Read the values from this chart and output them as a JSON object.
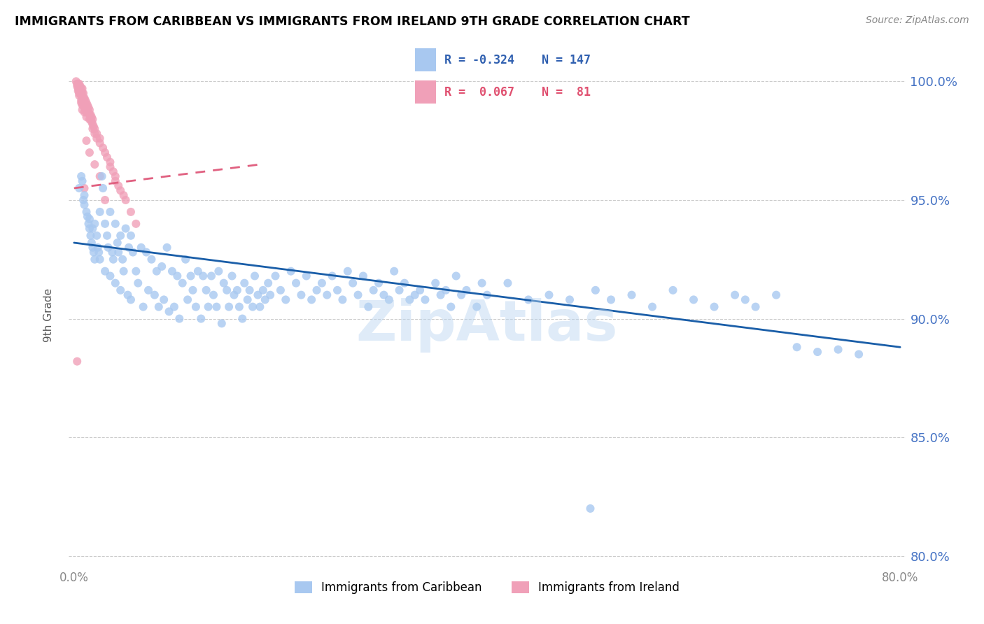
{
  "title": "IMMIGRANTS FROM CARIBBEAN VS IMMIGRANTS FROM IRELAND 9TH GRADE CORRELATION CHART",
  "source_text": "Source: ZipAtlas.com",
  "ylabel": "9th Grade",
  "xlim": [
    -0.005,
    0.805
  ],
  "ylim": [
    0.795,
    1.008
  ],
  "yticks": [
    0.8,
    0.85,
    0.9,
    0.95,
    1.0
  ],
  "ytick_labels": [
    "80.0%",
    "85.0%",
    "90.0%",
    "95.0%",
    "100.0%"
  ],
  "xticks": [
    0.0,
    0.2,
    0.4,
    0.6,
    0.8
  ],
  "xtick_labels": [
    "0.0%",
    "",
    "",
    "",
    "80.0%"
  ],
  "blue_color": "#A8C8F0",
  "pink_color": "#F0A0B8",
  "blue_line_color": "#1A5EA8",
  "pink_line_color": "#E06080",
  "grid_color": "#CCCCCC",
  "watermark_text": "ZipAtlas",
  "watermark_color": "#B8D4F0",
  "legend_R_blue": "-0.324",
  "legend_N_blue": "147",
  "legend_R_pink": " 0.067",
  "legend_N_pink": " 81",
  "blue_trend_x0": 0.0,
  "blue_trend_y0": 0.932,
  "blue_trend_x1": 0.8,
  "blue_trend_y1": 0.888,
  "pink_trend_x0": 0.0,
  "pink_trend_y0": 0.955,
  "pink_trend_x1": 0.18,
  "pink_trend_y1": 0.965,
  "blue_scatter_x": [
    0.005,
    0.007,
    0.008,
    0.009,
    0.01,
    0.01,
    0.012,
    0.013,
    0.014,
    0.015,
    0.015,
    0.016,
    0.017,
    0.018,
    0.018,
    0.019,
    0.02,
    0.02,
    0.022,
    0.023,
    0.024,
    0.025,
    0.025,
    0.027,
    0.028,
    0.03,
    0.03,
    0.032,
    0.033,
    0.035,
    0.035,
    0.037,
    0.038,
    0.04,
    0.04,
    0.042,
    0.043,
    0.045,
    0.045,
    0.047,
    0.048,
    0.05,
    0.052,
    0.053,
    0.055,
    0.055,
    0.057,
    0.06,
    0.062,
    0.065,
    0.067,
    0.07,
    0.072,
    0.075,
    0.078,
    0.08,
    0.082,
    0.085,
    0.087,
    0.09,
    0.092,
    0.095,
    0.097,
    0.1,
    0.102,
    0.105,
    0.108,
    0.11,
    0.113,
    0.115,
    0.118,
    0.12,
    0.123,
    0.125,
    0.128,
    0.13,
    0.133,
    0.135,
    0.138,
    0.14,
    0.143,
    0.145,
    0.148,
    0.15,
    0.153,
    0.155,
    0.158,
    0.16,
    0.163,
    0.165,
    0.168,
    0.17,
    0.173,
    0.175,
    0.178,
    0.18,
    0.183,
    0.185,
    0.188,
    0.19,
    0.195,
    0.2,
    0.205,
    0.21,
    0.215,
    0.22,
    0.225,
    0.23,
    0.235,
    0.24,
    0.245,
    0.25,
    0.255,
    0.26,
    0.265,
    0.27,
    0.275,
    0.28,
    0.285,
    0.29,
    0.295,
    0.3,
    0.305,
    0.31,
    0.315,
    0.32,
    0.325,
    0.33,
    0.335,
    0.34,
    0.35,
    0.355,
    0.36,
    0.365,
    0.37,
    0.375,
    0.38,
    0.39,
    0.395,
    0.4,
    0.42,
    0.44,
    0.46,
    0.48,
    0.5,
    0.505,
    0.52,
    0.54,
    0.56,
    0.58,
    0.6,
    0.62,
    0.64,
    0.65,
    0.66,
    0.68,
    0.7,
    0.72,
    0.74,
    0.76
  ],
  "blue_scatter_y": [
    0.955,
    0.96,
    0.958,
    0.95,
    0.952,
    0.948,
    0.945,
    0.943,
    0.94,
    0.938,
    0.942,
    0.935,
    0.932,
    0.938,
    0.93,
    0.928,
    0.925,
    0.94,
    0.935,
    0.93,
    0.928,
    0.945,
    0.925,
    0.96,
    0.955,
    0.94,
    0.92,
    0.935,
    0.93,
    0.945,
    0.918,
    0.928,
    0.925,
    0.94,
    0.915,
    0.932,
    0.928,
    0.935,
    0.912,
    0.925,
    0.92,
    0.938,
    0.91,
    0.93,
    0.935,
    0.908,
    0.928,
    0.92,
    0.915,
    0.93,
    0.905,
    0.928,
    0.912,
    0.925,
    0.91,
    0.92,
    0.905,
    0.922,
    0.908,
    0.93,
    0.903,
    0.92,
    0.905,
    0.918,
    0.9,
    0.915,
    0.925,
    0.908,
    0.918,
    0.912,
    0.905,
    0.92,
    0.9,
    0.918,
    0.912,
    0.905,
    0.918,
    0.91,
    0.905,
    0.92,
    0.898,
    0.915,
    0.912,
    0.905,
    0.918,
    0.91,
    0.912,
    0.905,
    0.9,
    0.915,
    0.908,
    0.912,
    0.905,
    0.918,
    0.91,
    0.905,
    0.912,
    0.908,
    0.915,
    0.91,
    0.918,
    0.912,
    0.908,
    0.92,
    0.915,
    0.91,
    0.918,
    0.908,
    0.912,
    0.915,
    0.91,
    0.918,
    0.912,
    0.908,
    0.92,
    0.915,
    0.91,
    0.918,
    0.905,
    0.912,
    0.915,
    0.91,
    0.908,
    0.92,
    0.912,
    0.915,
    0.908,
    0.91,
    0.912,
    0.908,
    0.915,
    0.91,
    0.912,
    0.905,
    0.918,
    0.91,
    0.912,
    0.905,
    0.915,
    0.91,
    0.915,
    0.908,
    0.91,
    0.908,
    0.82,
    0.912,
    0.908,
    0.91,
    0.905,
    0.912,
    0.908,
    0.905,
    0.91,
    0.908,
    0.905,
    0.91,
    0.888,
    0.886,
    0.887,
    0.885
  ],
  "pink_scatter_x": [
    0.002,
    0.003,
    0.003,
    0.004,
    0.004,
    0.004,
    0.005,
    0.005,
    0.005,
    0.005,
    0.005,
    0.006,
    0.006,
    0.006,
    0.007,
    0.007,
    0.007,
    0.007,
    0.007,
    0.008,
    0.008,
    0.008,
    0.008,
    0.008,
    0.008,
    0.009,
    0.009,
    0.009,
    0.01,
    0.01,
    0.01,
    0.01,
    0.011,
    0.011,
    0.011,
    0.012,
    0.012,
    0.012,
    0.012,
    0.013,
    0.013,
    0.014,
    0.014,
    0.015,
    0.015,
    0.015,
    0.016,
    0.016,
    0.017,
    0.017,
    0.018,
    0.018,
    0.018,
    0.019,
    0.02,
    0.02,
    0.022,
    0.022,
    0.025,
    0.025,
    0.028,
    0.03,
    0.032,
    0.035,
    0.035,
    0.038,
    0.04,
    0.04,
    0.043,
    0.045,
    0.048,
    0.05,
    0.055,
    0.06,
    0.012,
    0.015,
    0.02,
    0.025,
    0.01,
    0.03,
    0.003
  ],
  "pink_scatter_y": [
    1.0,
    0.999,
    0.998,
    0.999,
    0.997,
    0.996,
    0.999,
    0.997,
    0.996,
    0.995,
    0.994,
    0.998,
    0.996,
    0.995,
    0.997,
    0.995,
    0.994,
    0.992,
    0.991,
    0.997,
    0.995,
    0.993,
    0.991,
    0.99,
    0.988,
    0.995,
    0.993,
    0.99,
    0.993,
    0.991,
    0.989,
    0.987,
    0.992,
    0.99,
    0.988,
    0.991,
    0.989,
    0.987,
    0.985,
    0.99,
    0.988,
    0.989,
    0.987,
    0.988,
    0.986,
    0.984,
    0.986,
    0.984,
    0.985,
    0.983,
    0.984,
    0.982,
    0.98,
    0.981,
    0.98,
    0.978,
    0.978,
    0.976,
    0.976,
    0.974,
    0.972,
    0.97,
    0.968,
    0.966,
    0.964,
    0.962,
    0.96,
    0.958,
    0.956,
    0.954,
    0.952,
    0.95,
    0.945,
    0.94,
    0.975,
    0.97,
    0.965,
    0.96,
    0.955,
    0.95,
    0.882
  ]
}
